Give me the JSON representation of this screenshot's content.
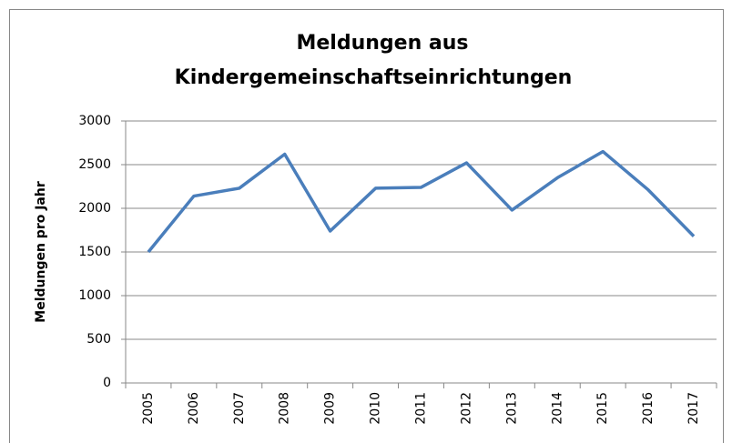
{
  "chart_data": {
    "type": "line",
    "title": [
      "Meldungen aus",
      "Kindergemeinschaftseinrichtungen"
    ],
    "y_label": "Meldungen pro Jahr",
    "categories": [
      "2005",
      "2006",
      "2007",
      "2008",
      "2009",
      "2010",
      "2011",
      "2012",
      "2013",
      "2014",
      "2015",
      "2016",
      "2017"
    ],
    "series": [
      {
        "name": "Meldungen",
        "color": "#4a7ebb",
        "values": [
          1500,
          2140,
          2230,
          2620,
          1740,
          2230,
          2240,
          2520,
          1980,
          2350,
          2650,
          2210,
          1680
        ]
      }
    ],
    "ylim": [
      0,
      3000
    ],
    "yticks": [
      0,
      500,
      1000,
      1500,
      2000,
      2500,
      3000
    ],
    "grid": true
  }
}
